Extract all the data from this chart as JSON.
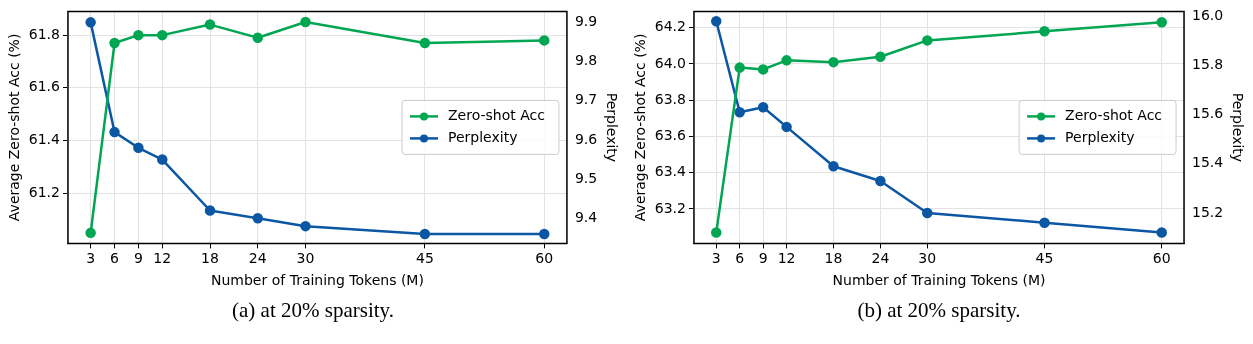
{
  "chart_data": [
    {
      "type": "line",
      "title": "(a) at 20% sparsity.",
      "xlabel": "Number of Training Tokens (M)",
      "ylabel": "Average Zero-shot Acc (%)",
      "y2label": "Perplexity",
      "x": [
        3,
        6,
        9,
        12,
        18,
        24,
        30,
        45,
        60
      ],
      "series": [
        {
          "name": "Zero-shot Acc",
          "color": "#00a651",
          "values": [
            61.05,
            61.77,
            61.8,
            61.8,
            61.84,
            61.79,
            61.85,
            61.77,
            61.78
          ]
        },
        {
          "name": "Perplexity",
          "color": "#0b57a4",
          "axis": "y2",
          "values": [
            9.9,
            9.62,
            9.58,
            9.55,
            9.42,
            9.4,
            9.38,
            9.36,
            9.36
          ]
        }
      ],
      "xlim": [
        0.15,
        62.85
      ],
      "xticks": [
        3,
        6,
        9,
        12,
        18,
        24,
        30,
        45,
        60
      ],
      "ylim": [
        61.01,
        61.89
      ],
      "yticks": [
        61.2,
        61.4,
        61.6,
        61.8
      ],
      "y2lim": [
        9.336,
        9.928
      ],
      "y2ticks": [
        9.4,
        9.5,
        9.6,
        9.7,
        9.8,
        9.9
      ],
      "grid": true,
      "legend": "right",
      "marker": "circle",
      "line_style": "solid"
    },
    {
      "type": "line",
      "title": "(b) at 20% sparsity.",
      "xlabel": "Number of Training Tokens (M)",
      "ylabel": "Average Zero-shot Acc (%)",
      "y2label": "Perplexity",
      "x": [
        3,
        6,
        9,
        12,
        18,
        24,
        30,
        45,
        60
      ],
      "series": [
        {
          "name": "Zero-shot Acc",
          "color": "#00a651",
          "values": [
            63.07,
            63.98,
            63.97,
            64.02,
            64.01,
            64.04,
            64.13,
            64.18,
            64.23
          ]
        },
        {
          "name": "Perplexity",
          "color": "#0b57a4",
          "axis": "y2",
          "values": [
            15.98,
            15.61,
            15.63,
            15.55,
            15.39,
            15.33,
            15.2,
            15.16,
            15.12
          ]
        }
      ],
      "xlim": [
        0.15,
        62.85
      ],
      "xticks": [
        3,
        6,
        9,
        12,
        18,
        24,
        30,
        45,
        60
      ],
      "ylim": [
        63.01,
        64.29
      ],
      "yticks": [
        63.2,
        63.4,
        63.6,
        63.8,
        {
          "value": 64,
          "label": "64.0"
        },
        64.2
      ],
      "y2lim": [
        15.076,
        16.02
      ],
      "y2ticks": [
        15.2,
        15.4,
        15.6,
        15.8,
        {
          "value": 16,
          "label": "16.0"
        }
      ],
      "grid": true,
      "legend": "right",
      "marker": "circle",
      "line_style": "solid"
    }
  ]
}
